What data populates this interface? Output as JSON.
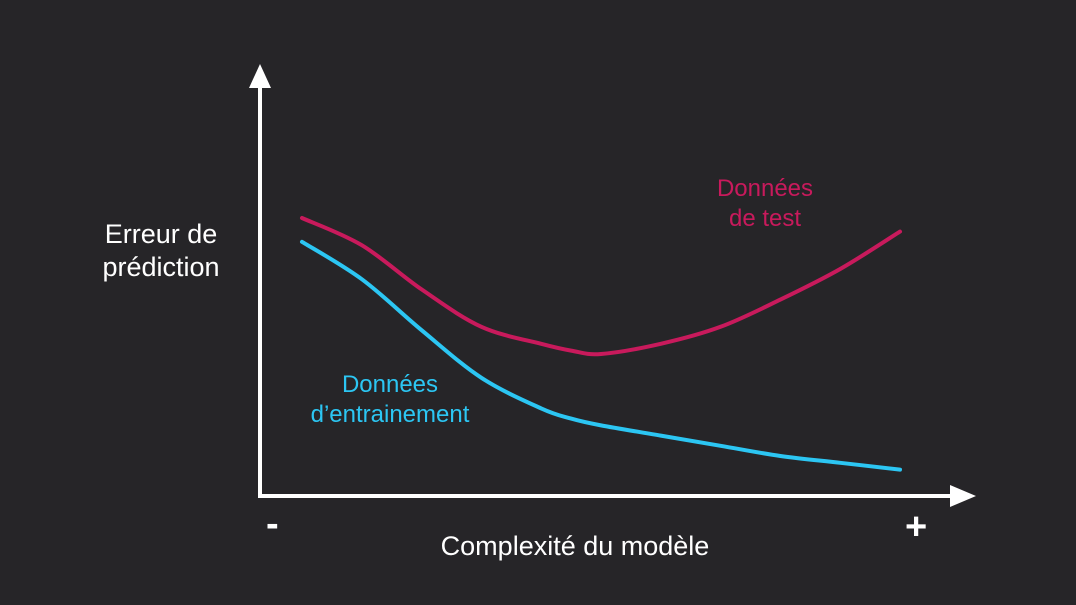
{
  "colors": {
    "background": "#262528",
    "axes": "#ffffff",
    "test": "#c81a5c",
    "train": "#2cc6f3"
  },
  "axis": {
    "y_label": [
      "Erreur de",
      "prédiction"
    ],
    "x_label": "Complexité du modèle",
    "x_min_marker": "-",
    "x_max_marker": "+"
  },
  "chart_data": {
    "type": "line",
    "title": "",
    "xlabel": "Complexité du modèle",
    "ylabel": "Erreur de prédiction",
    "xlim": [
      0,
      100
    ],
    "ylim": [
      0,
      100
    ],
    "grid": false,
    "series": [
      {
        "name": "Données de test",
        "label_lines": [
          "Données",
          "de test"
        ],
        "color": "#c81a5c",
        "x": [
          0,
          10,
          20,
          30,
          40,
          45,
          50,
          60,
          70,
          80,
          90,
          100
        ],
        "y": [
          80,
          72,
          59,
          48,
          43,
          41,
          40,
          43,
          48,
          56,
          65,
          76
        ]
      },
      {
        "name": "Données d’entrainement",
        "label_lines": [
          "Données",
          "d’entrainement"
        ],
        "color": "#2cc6f3",
        "x": [
          0,
          10,
          20,
          30,
          40,
          45,
          50,
          60,
          70,
          80,
          90,
          100
        ],
        "y": [
          73,
          62,
          47,
          33,
          24,
          21,
          19,
          16,
          13,
          10,
          8,
          6
        ]
      }
    ]
  }
}
